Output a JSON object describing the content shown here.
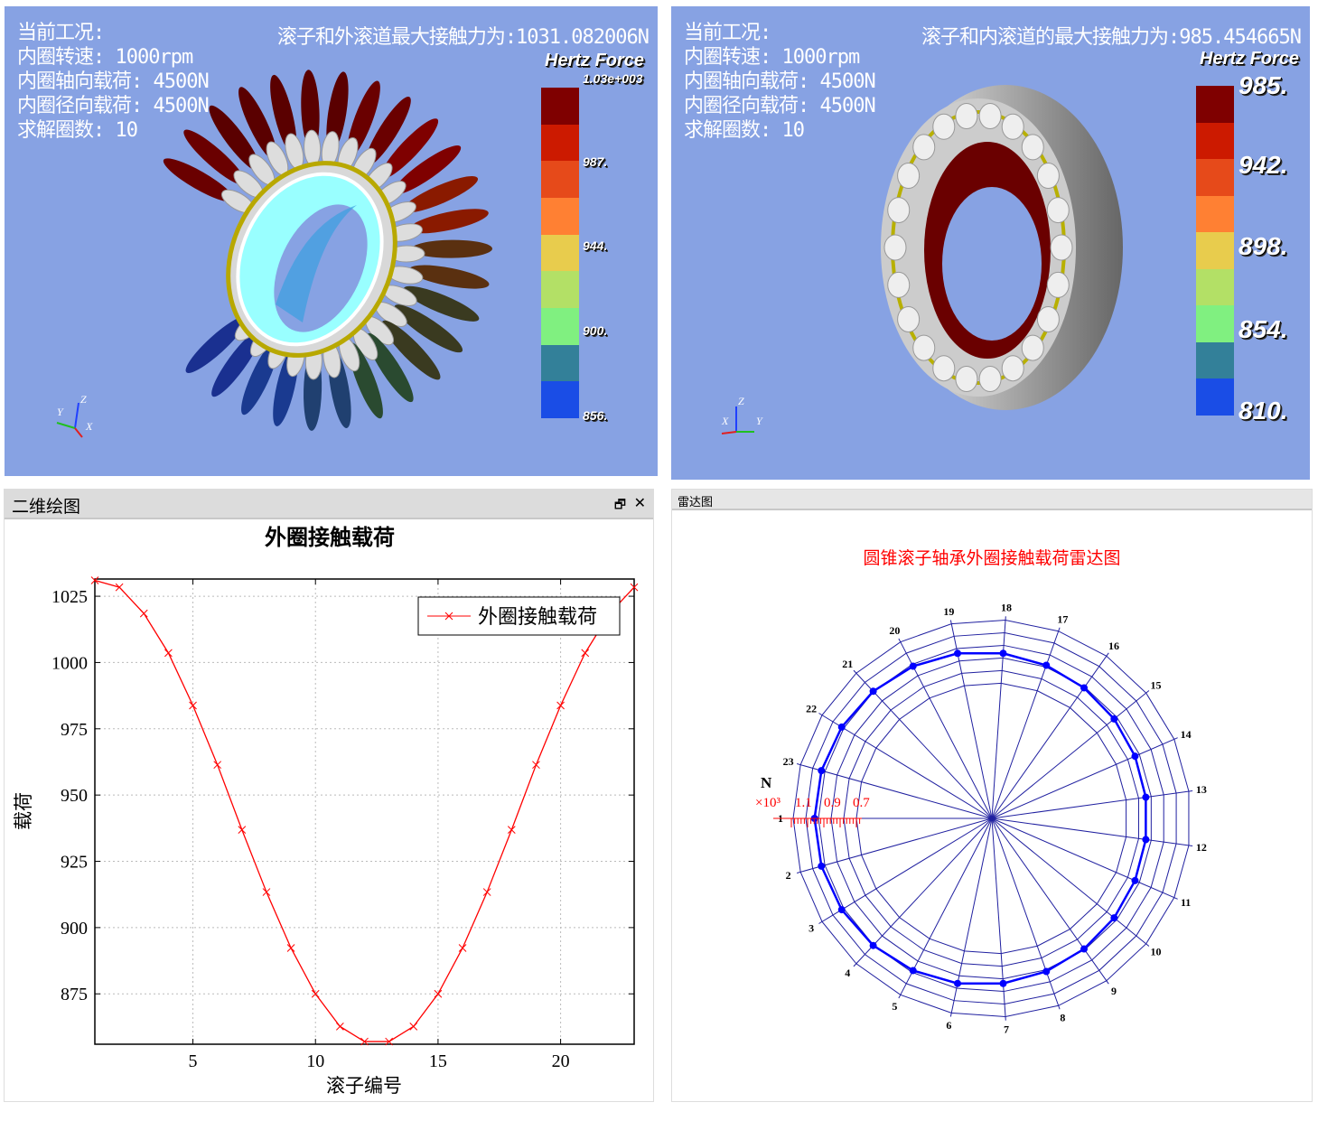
{
  "left_view": {
    "info": [
      "当前工况:",
      "内圈转速: 1000rpm",
      "内圈轴向载荷: 4500N",
      "内圈径向载荷: 4500N",
      "求解圈数: 10"
    ],
    "max_force": "滚子和外滚道最大接触力为:1031.082006N",
    "legend_title": "Hertz Force",
    "legend_labels": [
      "1.03e+003",
      "987.",
      "944.",
      "900.",
      "856."
    ],
    "axes": {
      "z": "Z",
      "y": "Y",
      "x": "X"
    }
  },
  "right_view": {
    "info": [
      "当前工况:",
      "内圈转速: 1000rpm",
      "内圈轴向载荷: 4500N",
      "内圈径向载荷: 4500N",
      "求解圈数: 10"
    ],
    "max_force": "滚子和内滚道的最大接触力为:985.454665N",
    "legend_title": "Hertz Force",
    "legend_labels": [
      "985.",
      "942.",
      "898.",
      "854.",
      "810."
    ],
    "axes": {
      "z": "Z",
      "y": "Y",
      "x": "X"
    }
  },
  "colormap": [
    "#7f0000",
    "#cc1a00",
    "#e64a1a",
    "#ff8033",
    "#e8cc4d",
    "#b3e066",
    "#80f080",
    "#338099",
    "#1a4de6"
  ],
  "plot_panel": {
    "title": "二维绘图",
    "restore_icon": "restore-icon",
    "close_label": "✕"
  },
  "radar_panel": {
    "title": "雷达图"
  },
  "chart_data": [
    {
      "type": "line",
      "title": "外圈接触载荷",
      "xlabel": "滚子编号",
      "ylabel": "载荷",
      "x": [
        1,
        2,
        3,
        4,
        5,
        6,
        7,
        8,
        9,
        10,
        11,
        12,
        13,
        14,
        15,
        16,
        17,
        18,
        19,
        20,
        21,
        22,
        23
      ],
      "series": [
        {
          "name": "外圈接触载荷",
          "color": "#ff0000",
          "marker": "x",
          "values": [
            1031,
            1028.4,
            1018.5,
            1003.6,
            983.8,
            961.4,
            936.9,
            913.4,
            892.3,
            875,
            862.7,
            857,
            857,
            862.7,
            875,
            892.3,
            913.4,
            936.9,
            961.4,
            983.8,
            1003.6,
            1018.5,
            1028.4
          ]
        }
      ],
      "xlim": [
        1,
        23
      ],
      "ylim": [
        856,
        1031.5
      ],
      "xticks": [
        5,
        10,
        15,
        20
      ],
      "yticks": [
        875,
        900,
        925,
        950,
        975,
        1000,
        1025
      ],
      "grid": true,
      "legend": "top-right"
    },
    {
      "type": "radar",
      "title": "圆锥滚子轴承外圈接触载荷雷达图",
      "categories": [
        "1",
        "2",
        "3",
        "4",
        "5",
        "6",
        "7",
        "8",
        "9",
        "10",
        "11",
        "12",
        "13",
        "14",
        "15",
        "16",
        "17",
        "18",
        "19",
        "20",
        "21",
        "22",
        "23"
      ],
      "values": [
        1031,
        1028.4,
        1018.5,
        1003.6,
        983.8,
        961.4,
        936.9,
        913.4,
        892.3,
        875,
        862.7,
        857,
        857,
        862.7,
        875,
        892.3,
        913.4,
        936.9,
        961.4,
        983.8,
        1003.6,
        1018.5,
        1028.4
      ],
      "north_label": "N",
      "scale_label": "×10³",
      "scale_ticks": [
        "1.1",
        "0.9",
        "0.7"
      ],
      "rings": [
        700,
        800,
        900,
        1000,
        1100,
        1200
      ],
      "color": "#0000ff"
    }
  ]
}
